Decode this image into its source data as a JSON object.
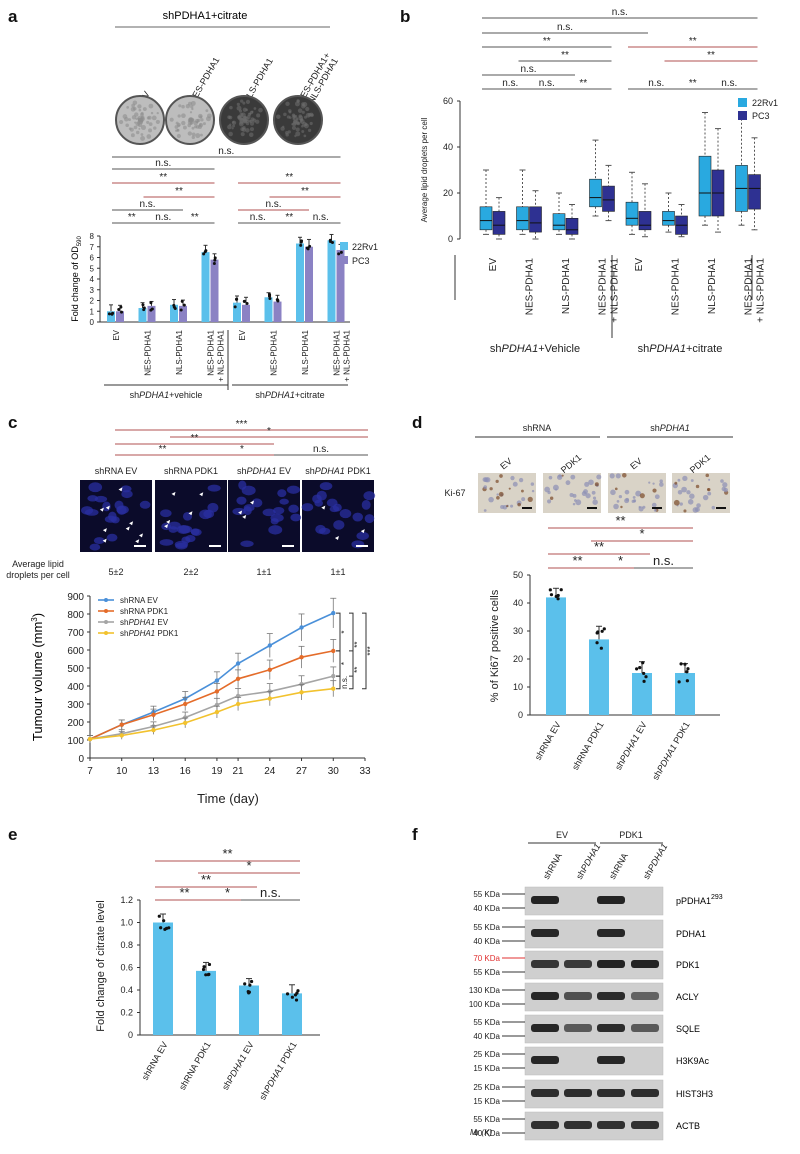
{
  "colors": {
    "light_blue": "#5bc0eb",
    "violet": "#8b82c4",
    "box_light": "#29a9e0",
    "box_dark": "#2e3192",
    "shrna_ev": "#4a90d9",
    "shrna_pdk1": "#e46c2a",
    "shpdha1_ev": "#a5a5a5",
    "shpdha1_pdk1": "#f2c22e",
    "bracket_red": "#b05050",
    "marker_red": "#e03030"
  },
  "panel_a": {
    "label": "a",
    "group_title": "shPDHA1+citrate",
    "plate_labels": [
      "EV",
      "NES-PDHA1",
      "NLS-PDHA1",
      "NES-PDHA1+\nNLS-PDHA1"
    ],
    "sig": [
      "n.s.",
      "**",
      "**",
      "n.s.",
      "n.s.",
      "**",
      "n.s.",
      "**",
      "**",
      "n.s.",
      "n.s.",
      "**",
      "**",
      "n.s."
    ],
    "ylabel": "Fold change of OD",
    "ylabel_sub": "590",
    "yticks": [
      "0",
      "1",
      "2",
      "3",
      "4",
      "5",
      "6",
      "7",
      "8"
    ],
    "categories": [
      "EV",
      "NES-PDHA1",
      "NLS-PDHA1",
      "NES-PDHA1\n+ NLS-PDHA1",
      "EV",
      "NES-PDHA1",
      "NLS-PDHA1",
      "NES-PDHA1\n+ NLS-PDHA1"
    ],
    "group_labels": [
      "shPDHA1+vehicle",
      "shPDHA1+citrate"
    ],
    "legend": [
      "22Rv1",
      "PC3"
    ]
  },
  "panel_b": {
    "label": "b",
    "sig": [
      "n.s.",
      "n.s.",
      "**",
      "**",
      "n.s.",
      "n.s.",
      "n.s.",
      "**",
      "**",
      "**",
      "n.s.",
      "**",
      "n.s."
    ],
    "ylabel": "Average lipid droplets per cell",
    "yticks": [
      "0",
      "20",
      "40",
      "60"
    ],
    "categories": [
      "EV",
      "NES-PDHA1",
      "NLS-PDHA1",
      "NES-PDHA1\n+ NLS-PDHA1",
      "EV",
      "NES-PDHA1",
      "NLS-PDHA1",
      "NES-PDHA1\n+ NLS-PDHA1"
    ],
    "group_labels": [
      "shPDHA1+Vehicle",
      "shPDHA1+citrate"
    ],
    "legend": [
      "22Rv1",
      "PC3"
    ]
  },
  "panel_c": {
    "label": "c",
    "sig_top": [
      "***",
      "*",
      "**",
      "n.s.",
      "**",
      "*"
    ],
    "image_labels": [
      "shRNA EV",
      "shRNA PDK1",
      "shPDHA1 EV",
      "shPDHA1 PDK1"
    ],
    "lipid_header": "Average lipid\ndroplets per cell",
    "lipid_values": [
      "5±2",
      "2±2",
      "1±1",
      "1±1"
    ],
    "ylabel": "Tumour volume (mm",
    "ylabel_sup": "3",
    "xlabel": "Time (day)",
    "yticks": [
      "0",
      "100",
      "200",
      "300",
      "400",
      "500",
      "600",
      "700",
      "800",
      "900"
    ],
    "xticks": [
      "7",
      "10",
      "13",
      "16",
      "19",
      "21",
      "24",
      "27",
      "30",
      "33"
    ],
    "legend": [
      "shRNA EV",
      "shRNA PDK1",
      "shPDHA1 EV",
      "shPDHA1 PDK1"
    ],
    "sig_side": [
      "*",
      "**",
      "***",
      "*",
      "**",
      "n.s."
    ]
  },
  "panel_d": {
    "label": "d",
    "col_group1": "shRNA",
    "col_group2": "shPDHA1",
    "col_labels": [
      "EV",
      "PDK1",
      "EV",
      "PDK1"
    ],
    "row_label": "Ki-67",
    "sig": [
      "**",
      "*",
      "**",
      "**",
      "*",
      "n.s."
    ],
    "ylabel": "% of Ki67 positive cells",
    "yticks": [
      "0",
      "10",
      "20",
      "30",
      "40",
      "50"
    ],
    "categories": [
      "shRNA EV",
      "shRNA PDK1",
      "shPDHA1 EV",
      "shPDHA1 PDK1"
    ]
  },
  "panel_e": {
    "label": "e",
    "sig": [
      "**",
      "*",
      "**",
      "**",
      "*",
      "n.s."
    ],
    "ylabel": "Fold change of  citrate level",
    "yticks": [
      "0",
      "0.2",
      "0.4",
      "0.6",
      "0.8",
      "1.0",
      "1.2"
    ],
    "categories": [
      "shRNA EV",
      "shRNA PDK1",
      "shPDHA1 EV",
      "shPDHA1 PDK1"
    ]
  },
  "panel_f": {
    "label": "f",
    "groups": [
      "EV",
      "PDK1"
    ],
    "lanes": [
      "shRNA",
      "shPDHA1",
      "shRNA",
      "shPDHA1"
    ],
    "rows": [
      {
        "markers": [
          "55 KDa",
          "40 KDa"
        ],
        "name": "pPDHA1",
        "sup": "293"
      },
      {
        "markers": [
          "55 KDa",
          "40 KDa"
        ],
        "name": "PDHA1",
        "sup": ""
      },
      {
        "markers": [
          "70 KDa",
          "55 KDa"
        ],
        "name": "PDK1",
        "sup": ""
      },
      {
        "markers": [
          "130 KDa",
          "100 KDa"
        ],
        "name": "ACLY",
        "sup": ""
      },
      {
        "markers": [
          "55 KDa",
          "40 KDa"
        ],
        "name": "SQLE",
        "sup": ""
      },
      {
        "markers": [
          "25 KDa",
          "15 KDa"
        ],
        "name": "H3K9Ac",
        "sup": ""
      },
      {
        "markers": [
          "25 KDa",
          "15 KDa"
        ],
        "name": "HIST3H3",
        "sup": ""
      },
      {
        "markers": [
          "55 KDa",
          "40 KDa"
        ],
        "name": "ACTB",
        "sup": ""
      }
    ],
    "mr_label": "Mr (K)"
  },
  "chart_data": [
    {
      "type": "bar",
      "title": "",
      "ylabel": "Fold change of OD590",
      "categories": [
        "EV",
        "NES-PDHA1",
        "NLS-PDHA1",
        "NES-PDHA1 + NLS-PDHA1",
        "EV",
        "NES-PDHA1",
        "NLS-PDHA1",
        "NES-PDHA1 + NLS-PDHA1"
      ],
      "series": [
        {
          "name": "22Rv1",
          "values": [
            1.0,
            1.3,
            1.6,
            6.5,
            1.8,
            2.3,
            7.3,
            7.6
          ]
        },
        {
          "name": "PC3",
          "values": [
            1.0,
            1.5,
            1.5,
            5.8,
            1.6,
            1.9,
            7.0,
            6.7
          ]
        }
      ],
      "ylim": [
        0,
        8
      ]
    },
    {
      "type": "box",
      "ylabel": "Average lipid droplets per cell",
      "categories": [
        "EV",
        "NES-PDHA1",
        "NLS-PDHA1",
        "NES-PDHA1 + NLS-PDHA1",
        "EV",
        "NES-PDHA1",
        "NLS-PDHA1",
        "NES-PDHA1 + NLS-PDHA1"
      ],
      "series": [
        {
          "name": "22Rv1",
          "min": [
            2,
            2,
            2,
            10,
            2,
            3,
            6,
            6
          ],
          "q1": [
            4,
            4,
            4,
            14,
            6,
            6,
            10,
            12
          ],
          "median": [
            8,
            8,
            6,
            18,
            9,
            8,
            20,
            22
          ],
          "q3": [
            14,
            14,
            11,
            26,
            16,
            12,
            36,
            32
          ],
          "max": [
            30,
            30,
            20,
            43,
            29,
            20,
            55,
            54
          ]
        },
        {
          "name": "PC3",
          "min": [
            0,
            0,
            0,
            8,
            1,
            1,
            3,
            4
          ],
          "q1": [
            2,
            3,
            2,
            12,
            4,
            2,
            10,
            13
          ],
          "median": [
            6,
            7,
            4,
            17,
            6,
            6,
            20,
            22
          ],
          "q3": [
            12,
            14,
            9,
            23,
            12,
            10,
            30,
            28
          ],
          "max": [
            18,
            21,
            15,
            32,
            24,
            15,
            48,
            44
          ]
        }
      ],
      "ylim": [
        0,
        60
      ]
    },
    {
      "type": "line",
      "ylabel": "Tumour volume (mm3)",
      "xlabel": "Time (day)",
      "x": [
        7,
        10,
        13,
        16,
        19,
        21,
        24,
        27,
        30
      ],
      "series": [
        {
          "name": "shRNA EV",
          "values": [
            105,
            185,
            255,
            330,
            430,
            525,
            625,
            725,
            805
          ]
        },
        {
          "name": "shRNA PDK1",
          "values": [
            105,
            185,
            240,
            300,
            370,
            440,
            490,
            560,
            595
          ]
        },
        {
          "name": "shPDHA1 EV",
          "values": [
            105,
            135,
            175,
            225,
            295,
            345,
            370,
            410,
            455
          ]
        },
        {
          "name": "shPDHA1 PDK1",
          "values": [
            105,
            125,
            155,
            195,
            255,
            300,
            330,
            365,
            385
          ]
        }
      ],
      "ylim": [
        0,
        900
      ],
      "xlim": [
        7,
        33
      ]
    },
    {
      "type": "bar",
      "ylabel": "% of Ki67 positive cells",
      "categories": [
        "shRNA EV",
        "shRNA PDK1",
        "shPDHA1 EV",
        "shPDHA1 PDK1"
      ],
      "values": [
        42,
        27,
        15,
        15
      ],
      "ylim": [
        0,
        50
      ]
    },
    {
      "type": "bar",
      "ylabel": "Fold change of citrate level",
      "categories": [
        "shRNA EV",
        "shRNA PDK1",
        "shPDHA1 EV",
        "shPDHA1 PDK1"
      ],
      "values": [
        1.0,
        0.57,
        0.44,
        0.37
      ],
      "ylim": [
        0,
        1.2
      ]
    }
  ]
}
